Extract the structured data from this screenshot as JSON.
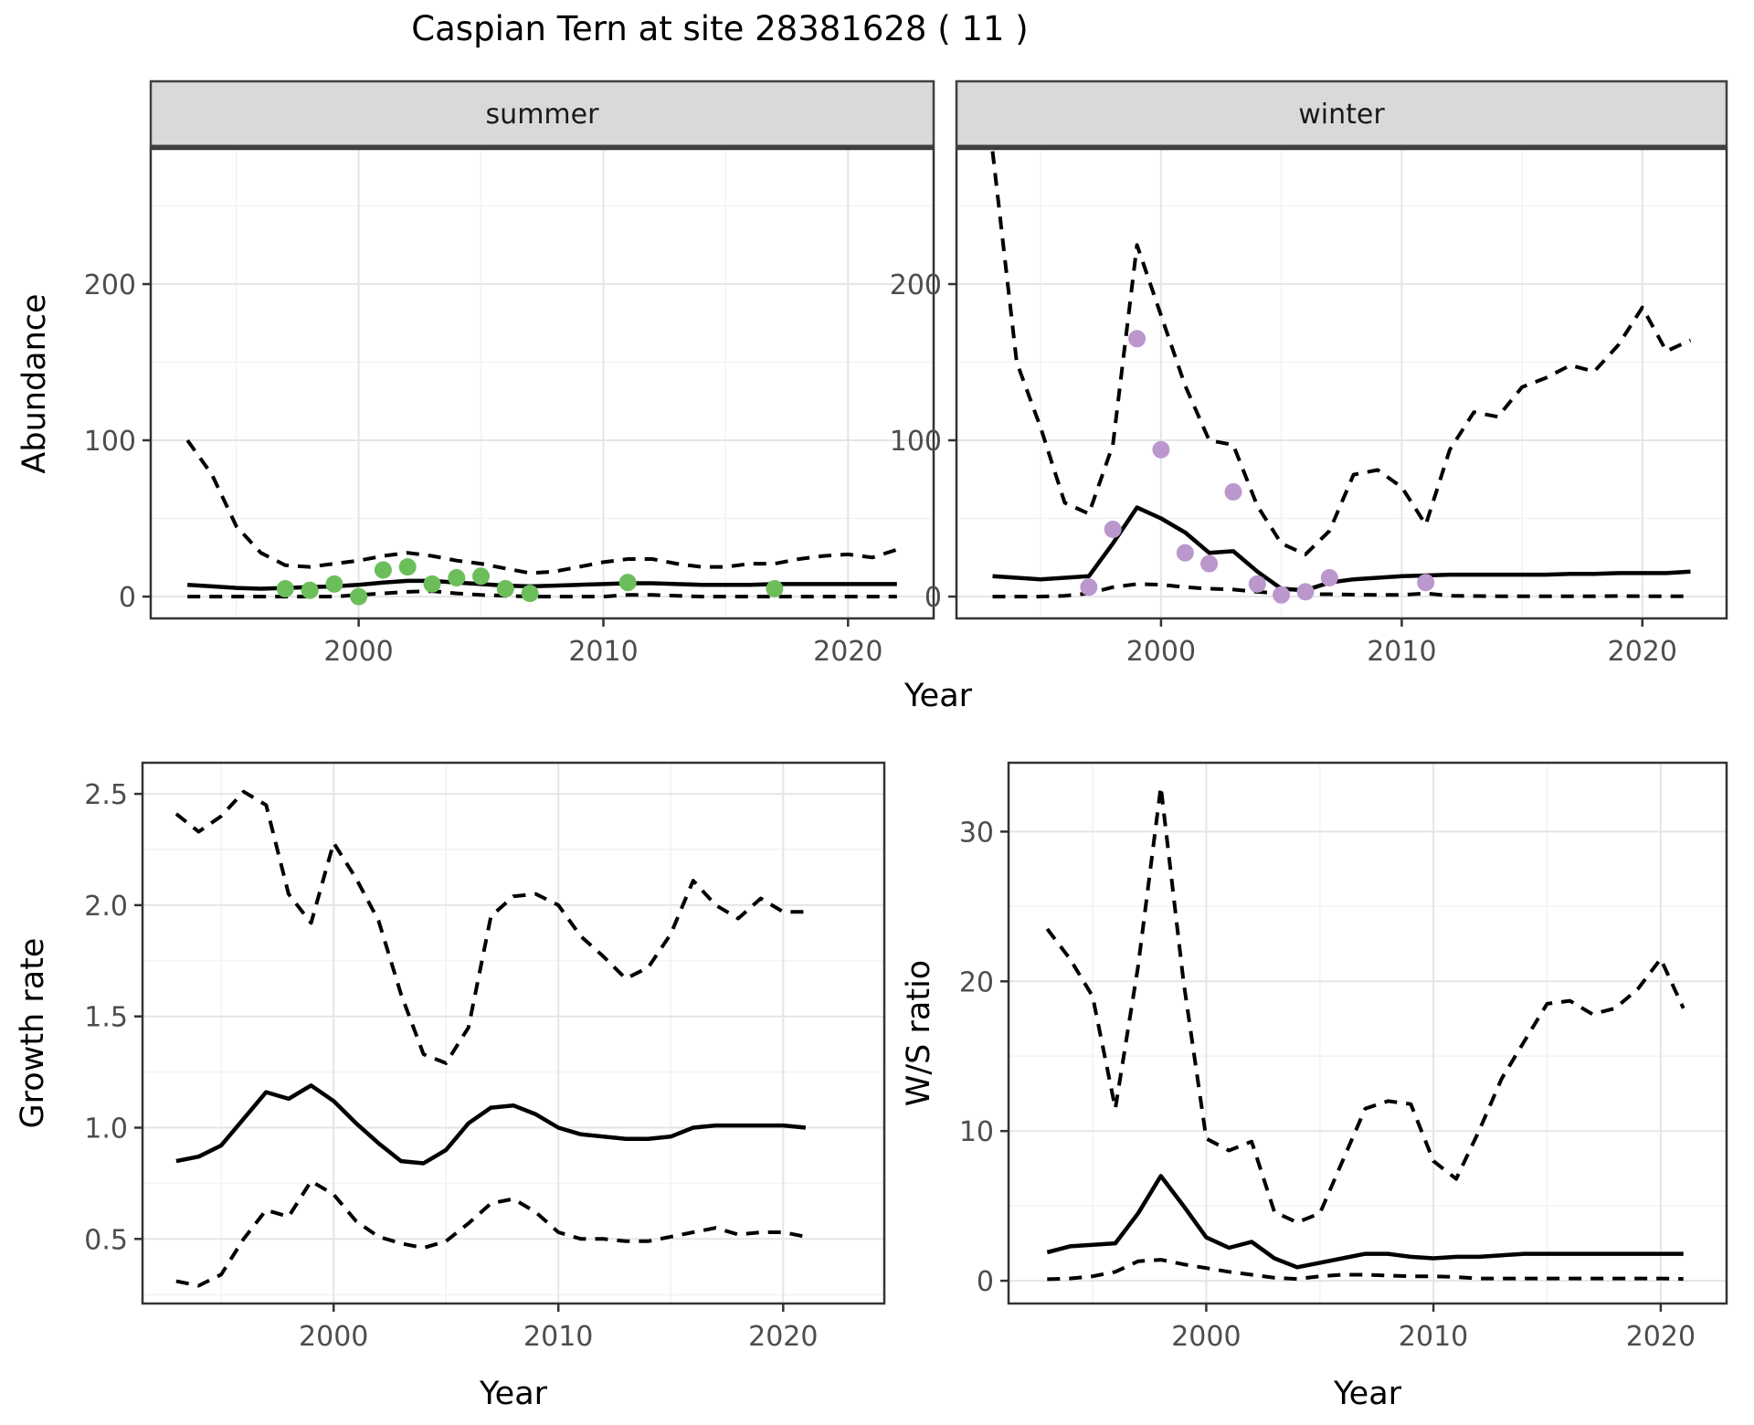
{
  "title": "Caspian Tern at site 28381628 ( 11 )",
  "xlabel": "Year",
  "colors": {
    "summer_point": "#6CBE5B",
    "winter_point": "#BA97CD",
    "line": "#000000",
    "strip_bg": "#d9d9d9",
    "strip_border": "#404040",
    "panel_border": "#333333",
    "grid_major": "#e5e5e5",
    "grid_minor": "#f2f2f2",
    "tick_text": "#4d4d4d"
  },
  "chart_data": [
    {
      "id": "abundance-summer",
      "type": "line",
      "facet_label": "summer",
      "ylabel": "Abundance",
      "xlabel": "Year",
      "xlim": [
        1991.5,
        2023.5
      ],
      "ylim": [
        -14,
        286.5
      ],
      "x_ticks": {
        "values": [
          2000,
          2010,
          2020
        ],
        "labels": [
          "2000",
          "2010",
          "2020"
        ]
      },
      "x_minor": [
        1995,
        2005,
        2015
      ],
      "y_ticks": {
        "values": [
          0,
          100,
          200
        ],
        "labels": [
          "0",
          "100",
          "200"
        ]
      },
      "y_minor": [
        50,
        150,
        250
      ],
      "x": [
        1993,
        1994,
        1995,
        1996,
        1997,
        1998,
        1999,
        2000,
        2001,
        2002,
        2003,
        2004,
        2005,
        2006,
        2007,
        2008,
        2009,
        2010,
        2011,
        2012,
        2013,
        2014,
        2015,
        2016,
        2017,
        2018,
        2019,
        2020,
        2021,
        2022
      ],
      "series": [
        {
          "name": "median",
          "style": "solid",
          "values": [
            7.5,
            6.5,
            5.5,
            5,
            5.5,
            6,
            6.5,
            7.5,
            9,
            10,
            10,
            9,
            8,
            7,
            6.5,
            7,
            7.5,
            8,
            8.5,
            8.5,
            8,
            7.5,
            7.5,
            7.5,
            8,
            8,
            8,
            8,
            8,
            8
          ]
        },
        {
          "name": "upper-95",
          "style": "dashed",
          "values": [
            100,
            78,
            45,
            28,
            20,
            19,
            21,
            23,
            26,
            28,
            26,
            23,
            21,
            18,
            15,
            16,
            19,
            22,
            24,
            24,
            21,
            19,
            19,
            21,
            21,
            24,
            26,
            27,
            25,
            30
          ]
        },
        {
          "name": "lower-95",
          "style": "dashed",
          "values": [
            0,
            0,
            0,
            0,
            0,
            0,
            0,
            1,
            2,
            3,
            3.5,
            2,
            1,
            0.5,
            0,
            0,
            0,
            0,
            1,
            1,
            0.5,
            0,
            0,
            0,
            0,
            0,
            0,
            0,
            0,
            0
          ]
        }
      ],
      "points": {
        "name": "observed-counts",
        "color_key": "summer_point",
        "x": [
          1997,
          1998,
          1999,
          2000,
          2001,
          2002,
          2003,
          2004,
          2005,
          2006,
          2007,
          2011,
          2017
        ],
        "y": [
          5,
          4,
          8,
          0,
          17,
          19,
          8,
          12,
          13,
          5,
          2,
          9,
          5
        ]
      }
    },
    {
      "id": "abundance-winter",
      "type": "line",
      "facet_label": "winter",
      "ylabel": "Abundance",
      "xlabel": "Year",
      "xlim": [
        1991.5,
        2023.5
      ],
      "ylim": [
        -14,
        286.5
      ],
      "x_ticks": {
        "values": [
          2000,
          2010,
          2020
        ],
        "labels": [
          "2000",
          "2010",
          "2020"
        ]
      },
      "x_minor": [
        1995,
        2005,
        2015
      ],
      "y_ticks": {
        "values": [
          0,
          100,
          200
        ],
        "labels": [
          "0",
          "100",
          "200"
        ]
      },
      "y_minor": [
        50,
        150,
        250
      ],
      "x": [
        1993,
        1994,
        1995,
        1996,
        1997,
        1998,
        1999,
        2000,
        2001,
        2002,
        2003,
        2004,
        2005,
        2006,
        2007,
        2008,
        2009,
        2010,
        2011,
        2012,
        2013,
        2014,
        2015,
        2016,
        2017,
        2018,
        2019,
        2020,
        2021,
        2022
      ],
      "series": [
        {
          "name": "median",
          "style": "solid",
          "values": [
            13,
            12,
            11,
            12,
            13,
            34,
            57,
            50,
            41,
            28,
            29,
            16,
            5,
            4,
            9,
            11,
            12,
            13,
            13.5,
            14,
            14,
            14,
            14,
            14,
            14.5,
            14.5,
            15,
            15,
            15,
            16
          ]
        },
        {
          "name": "upper-95",
          "style": "dashed",
          "values": [
            285,
            150,
            108,
            60,
            53,
            97,
            225,
            180,
            135,
            100,
            97,
            58,
            34,
            27,
            42,
            78,
            81,
            70,
            46,
            94,
            118,
            115,
            134,
            140,
            148,
            144,
            161,
            185,
            157,
            164
          ]
        },
        {
          "name": "lower-95",
          "style": "dashed",
          "values": [
            0,
            0,
            0,
            0.5,
            2,
            6,
            8,
            7.6,
            6,
            5,
            4.5,
            3,
            2,
            1.5,
            1.5,
            1.2,
            1,
            1,
            2,
            0.5,
            0.3,
            0.2,
            0.2,
            0.2,
            0.2,
            0.2,
            0.3,
            0.2,
            0.2,
            0.2
          ]
        }
      ],
      "points": {
        "name": "observed-counts",
        "color_key": "winter_point",
        "x": [
          1997,
          1998,
          1999,
          2000,
          2001,
          2002,
          2003,
          2004,
          2005,
          2006,
          2007,
          2011
        ],
        "y": [
          6,
          43,
          165,
          94,
          28,
          21,
          67,
          8,
          1,
          3,
          12,
          9
        ]
      }
    },
    {
      "id": "growth-rate",
      "type": "line",
      "ylabel": "Growth rate",
      "xlabel": "Year",
      "xlim": [
        1991.5,
        2024.5
      ],
      "ylim": [
        0.21,
        2.64
      ],
      "x_ticks": {
        "values": [
          2000,
          2010,
          2020
        ],
        "labels": [
          "2000",
          "2010",
          "2020"
        ]
      },
      "x_minor": [
        1995,
        2005,
        2015
      ],
      "y_ticks": {
        "values": [
          0.5,
          1.0,
          1.5,
          2.0,
          2.5
        ],
        "labels": [
          "0.5",
          "1.0",
          "1.5",
          "2.0",
          "2.5"
        ]
      },
      "y_minor": [
        0.25,
        0.75,
        1.25,
        1.75,
        2.25
      ],
      "x": [
        1993,
        1994,
        1995,
        1996,
        1997,
        1998,
        1999,
        2000,
        2001,
        2002,
        2003,
        2004,
        2005,
        2006,
        2007,
        2008,
        2009,
        2010,
        2011,
        2012,
        2013,
        2014,
        2015,
        2016,
        2017,
        2018,
        2019,
        2020,
        2021
      ],
      "series": [
        {
          "name": "median",
          "style": "solid",
          "values": [
            0.85,
            0.87,
            0.92,
            1.04,
            1.16,
            1.13,
            1.19,
            1.12,
            1.02,
            0.93,
            0.85,
            0.84,
            0.9,
            1.02,
            1.09,
            1.1,
            1.06,
            1.0,
            0.97,
            0.96,
            0.95,
            0.95,
            0.96,
            1.0,
            1.01,
            1.01,
            1.01,
            1.01,
            1.0
          ]
        },
        {
          "name": "upper-95",
          "style": "dashed",
          "values": [
            2.41,
            2.33,
            2.4,
            2.51,
            2.45,
            2.05,
            1.92,
            2.28,
            2.12,
            1.93,
            1.6,
            1.33,
            1.29,
            1.45,
            1.95,
            2.04,
            2.05,
            2.0,
            1.86,
            1.77,
            1.67,
            1.72,
            1.87,
            2.11,
            2.0,
            1.94,
            2.03,
            1.97,
            1.97
          ]
        },
        {
          "name": "lower-95",
          "style": "dashed",
          "values": [
            0.31,
            0.29,
            0.34,
            0.5,
            0.63,
            0.6,
            0.76,
            0.7,
            0.58,
            0.51,
            0.48,
            0.46,
            0.49,
            0.57,
            0.66,
            0.68,
            0.62,
            0.53,
            0.5,
            0.5,
            0.49,
            0.49,
            0.51,
            0.53,
            0.55,
            0.52,
            0.53,
            0.53,
            0.51
          ]
        }
      ]
    },
    {
      "id": "ws-ratio",
      "type": "line",
      "ylabel": "W/S ratio",
      "xlabel": "Year",
      "xlim": [
        1991.3,
        2022.9
      ],
      "ylim": [
        -1.52,
        34.6
      ],
      "x_ticks": {
        "values": [
          2000,
          2010,
          2020
        ],
        "labels": [
          "2000",
          "2010",
          "2020"
        ]
      },
      "x_minor": [
        1995,
        2005,
        2015
      ],
      "y_ticks": {
        "values": [
          0,
          10,
          20,
          30
        ],
        "labels": [
          "0",
          "10",
          "20",
          "30"
        ]
      },
      "y_minor": [
        5,
        15,
        25
      ],
      "x": [
        1993,
        1994,
        1995,
        1996,
        1997,
        1998,
        1999,
        2000,
        2001,
        2002,
        2003,
        2004,
        2005,
        2006,
        2007,
        2008,
        2009,
        2010,
        2011,
        2012,
        2013,
        2014,
        2015,
        2016,
        2017,
        2018,
        2019,
        2020,
        2021
      ],
      "series": [
        {
          "name": "median",
          "style": "solid",
          "values": [
            1.9,
            2.3,
            2.4,
            2.5,
            4.5,
            7.0,
            5.0,
            2.9,
            2.2,
            2.6,
            1.5,
            0.9,
            1.2,
            1.5,
            1.8,
            1.8,
            1.6,
            1.5,
            1.6,
            1.6,
            1.7,
            1.8,
            1.8,
            1.8,
            1.8,
            1.8,
            1.8,
            1.8,
            1.8
          ]
        },
        {
          "name": "upper-95",
          "style": "dashed",
          "values": [
            23.5,
            21.5,
            19,
            11.5,
            21,
            33,
            20,
            9.5,
            8.7,
            9.3,
            4.6,
            3.9,
            4.5,
            8,
            11.5,
            12,
            11.8,
            8,
            6.8,
            10,
            13.5,
            16,
            18.5,
            18.7,
            17.8,
            18.2,
            19.5,
            21.5,
            18.2
          ]
        },
        {
          "name": "lower-95",
          "style": "dashed",
          "values": [
            0.1,
            0.15,
            0.3,
            0.6,
            1.3,
            1.4,
            1.1,
            0.85,
            0.6,
            0.4,
            0.2,
            0.12,
            0.3,
            0.4,
            0.4,
            0.35,
            0.3,
            0.3,
            0.25,
            0.15,
            0.15,
            0.15,
            0.15,
            0.15,
            0.15,
            0.15,
            0.15,
            0.15,
            0.12
          ]
        }
      ]
    }
  ]
}
